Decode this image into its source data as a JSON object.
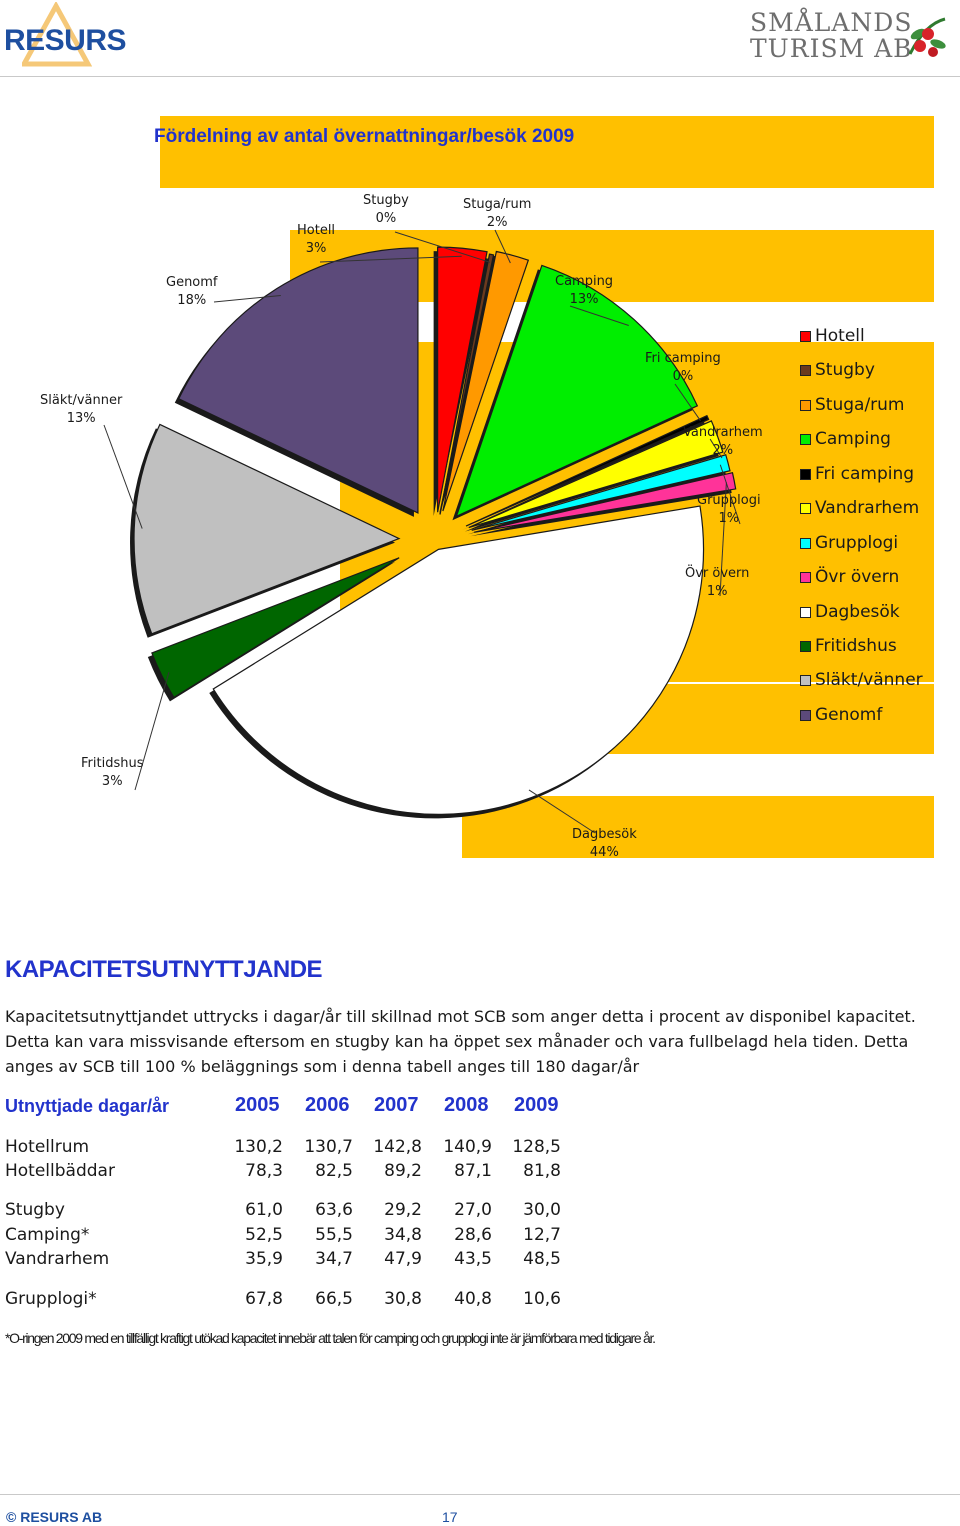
{
  "header": {
    "logo_left": "RESURS",
    "logo_right_line1": "SMÅLANDS",
    "logo_right_line2": "TURISM AB"
  },
  "chart_data": {
    "type": "pie",
    "title": "Fördelning av antal övernattningar/besök 2009",
    "slices": [
      {
        "name": "Hotell",
        "value": 3,
        "label": "3%",
        "color": "#ff0000"
      },
      {
        "name": "Stugby",
        "value": 0,
        "label": "0%",
        "color": "#6b3a1e"
      },
      {
        "name": "Stuga/rum",
        "value": 2,
        "label": "2%",
        "color": "#ff9900"
      },
      {
        "name": "Camping",
        "value": 13,
        "label": "13%",
        "color": "#00ee00"
      },
      {
        "name": "Fri camping",
        "value": 0,
        "label": "0%",
        "color": "#000000"
      },
      {
        "name": "Vandrarhem",
        "value": 2,
        "label": "2%",
        "color": "#ffff00"
      },
      {
        "name": "Grupplogi",
        "value": 1,
        "label": "1%",
        "color": "#00ffff"
      },
      {
        "name": "Övr övern",
        "value": 1,
        "label": "1%",
        "color": "#ff3399"
      },
      {
        "name": "Dagbesök",
        "value": 44,
        "label": "44%",
        "color": "#ffffff"
      },
      {
        "name": "Fritidshus",
        "value": 3,
        "label": "3%",
        "color": "#006600"
      },
      {
        "name": "Släkt/vänner",
        "value": 13,
        "label": "13%",
        "color": "#c0c0c0"
      },
      {
        "name": "Genomf",
        "value": 18,
        "label": "18%",
        "color": "#5c4a7a"
      }
    ],
    "legend_position": "right"
  },
  "section": {
    "heading": "KAPACITETSUTNYTTJANDE",
    "paragraph": "Kapacitetsutnyttjandet uttrycks i dagar/år till skillnad mot SCB som anger detta i procent av disponibel kapacitet. Detta kan vara missvisande eftersom en stugby kan ha öppet sex månader och vara fullbelagd hela tiden. Detta anges av SCB till 100 % beläggnings som i denna tabell anges till 180 dagar/år"
  },
  "table": {
    "header_label": "Utnyttjade dagar/år",
    "years": [
      "2005",
      "2006",
      "2007",
      "2008",
      "2009"
    ],
    "rows": [
      {
        "label": "Hotellrum",
        "values": [
          "130,2",
          "130,7",
          "142,8",
          "140,9",
          "128,5"
        ]
      },
      {
        "label": "Hotellbäddar",
        "values": [
          "78,3",
          "82,5",
          "89,2",
          "87,1",
          "81,8"
        ]
      },
      {
        "label": "Stugby",
        "values": [
          "61,0",
          "63,6",
          "29,2",
          "27,0",
          "30,0"
        ]
      },
      {
        "label": "Camping*",
        "values": [
          "52,5",
          "55,5",
          "34,8",
          "28,6",
          "12,7"
        ]
      },
      {
        "label": "Vandrarhem",
        "values": [
          "35,9",
          "34,7",
          "47,9",
          "43,5",
          "48,5"
        ]
      },
      {
        "label": "Grupplogi*",
        "values": [
          "67,8",
          "66,5",
          "30,8",
          "40,8",
          "10,6"
        ]
      }
    ],
    "footnote": "*O-ringen 2009 med en tillfälligt kraftigt utökad kapacitet innebär att talen för camping och grupplogi inte är jämförbara med tidigare år."
  },
  "footer": {
    "left": "© RESURS AB",
    "page": "17"
  }
}
